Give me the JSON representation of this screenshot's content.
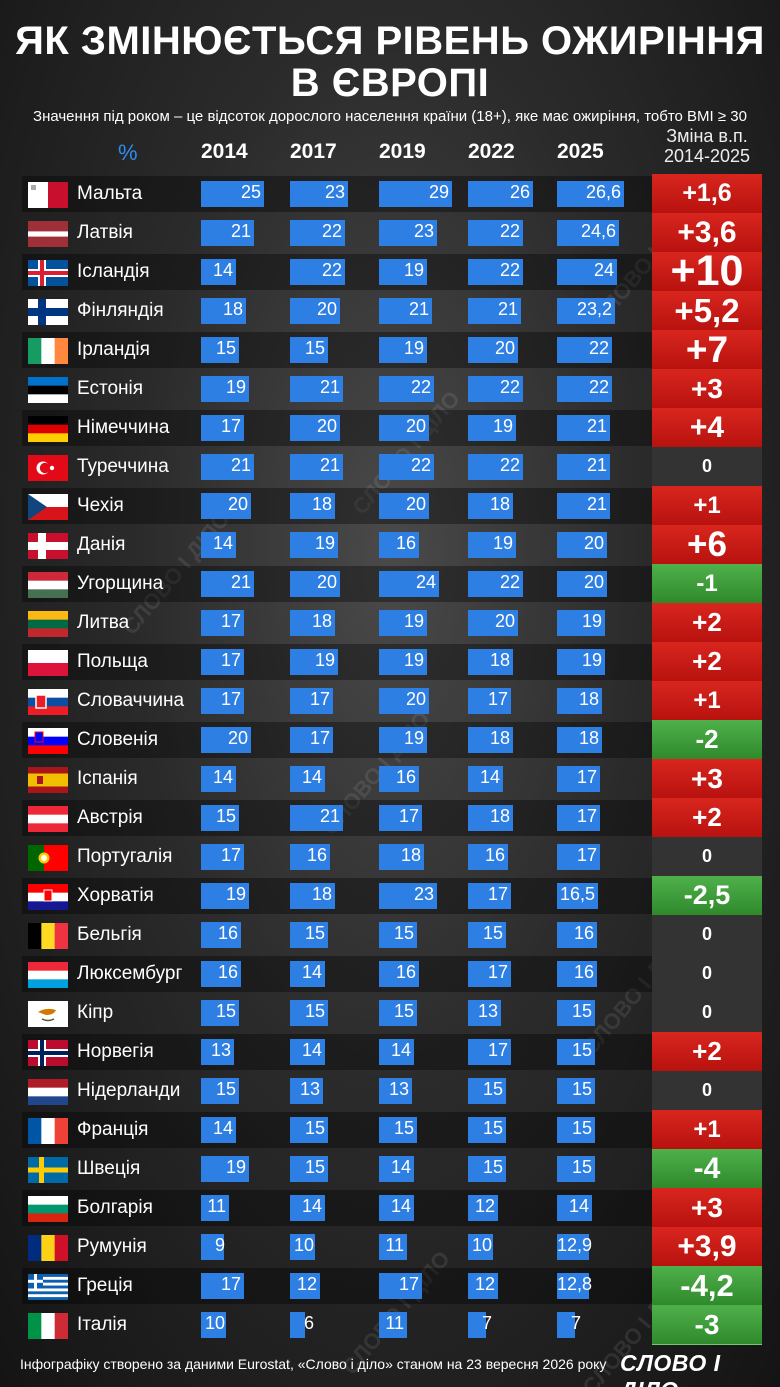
{
  "title_line1": "ЯК ЗМІНЮЄТЬСЯ РІВЕНЬ ОЖИРІННЯ",
  "title_line2": "В ЄВРОПІ",
  "subtitle": "Значення під роком – це відсоток дорослого населення країни (18+), яке має ожиріння, тобто BMI ≥ 30",
  "header": {
    "pct": "%",
    "years": [
      "2014",
      "2017",
      "2019",
      "2022",
      "2025"
    ],
    "change_line1": "Зміна в.п.",
    "change_line2": "2014-2025"
  },
  "colors": {
    "bar": "#2e7fe3",
    "increase": "#c8171a",
    "decrease": "#3d9d3a",
    "no_change": "#333333"
  },
  "chart_data": {
    "type": "table",
    "columns": [
      "2014",
      "2017",
      "2019",
      "2022",
      "2025"
    ],
    "rows": [
      {
        "country": "Мальта",
        "flag": "mt",
        "values": [
          25,
          23,
          29,
          26,
          26.6
        ],
        "labels": [
          "25",
          "23",
          "29",
          "26",
          "26,6"
        ],
        "change": "+1,6",
        "change_value": 1.6
      },
      {
        "country": "Латвія",
        "flag": "lv",
        "values": [
          21,
          22,
          23,
          22,
          24.6
        ],
        "labels": [
          "21",
          "22",
          "23",
          "22",
          "24,6"
        ],
        "change": "+3,6",
        "change_value": 3.6
      },
      {
        "country": "Ісландія",
        "flag": "is",
        "values": [
          14,
          22,
          19,
          22,
          24
        ],
        "labels": [
          "14",
          "22",
          "19",
          "22",
          "24"
        ],
        "change": "+10",
        "change_value": 10
      },
      {
        "country": "Фінляндія",
        "flag": "fi",
        "values": [
          18,
          20,
          21,
          21,
          23.2
        ],
        "labels": [
          "18",
          "20",
          "21",
          "21",
          "23,2"
        ],
        "change": "+5,2",
        "change_value": 5.2
      },
      {
        "country": "Ірландія",
        "flag": "ie",
        "values": [
          15,
          15,
          19,
          20,
          22
        ],
        "labels": [
          "15",
          "15",
          "19",
          "20",
          "22"
        ],
        "change": "+7",
        "change_value": 7
      },
      {
        "country": "Естонія",
        "flag": "ee",
        "values": [
          19,
          21,
          22,
          22,
          22
        ],
        "labels": [
          "19",
          "21",
          "22",
          "22",
          "22"
        ],
        "change": "+3",
        "change_value": 3
      },
      {
        "country": "Німеччина",
        "flag": "de",
        "values": [
          17,
          20,
          20,
          19,
          21
        ],
        "labels": [
          "17",
          "20",
          "20",
          "19",
          "21"
        ],
        "change": "+4",
        "change_value": 4
      },
      {
        "country": "Туреччина",
        "flag": "tr",
        "values": [
          21,
          21,
          22,
          22,
          21
        ],
        "labels": [
          "21",
          "21",
          "22",
          "22",
          "21"
        ],
        "change": "0",
        "change_value": 0
      },
      {
        "country": "Чехія",
        "flag": "cz",
        "values": [
          20,
          18,
          20,
          18,
          21
        ],
        "labels": [
          "20",
          "18",
          "20",
          "18",
          "21"
        ],
        "change": "+1",
        "change_value": 1
      },
      {
        "country": "Данія",
        "flag": "dk",
        "values": [
          14,
          19,
          16,
          19,
          20
        ],
        "labels": [
          "14",
          "19",
          "16",
          "19",
          "20"
        ],
        "change": "+6",
        "change_value": 6
      },
      {
        "country": "Угорщина",
        "flag": "hu",
        "values": [
          21,
          20,
          24,
          22,
          20
        ],
        "labels": [
          "21",
          "20",
          "24",
          "22",
          "20"
        ],
        "change": "-1",
        "change_value": -1
      },
      {
        "country": "Литва",
        "flag": "lt",
        "values": [
          17,
          18,
          19,
          20,
          19
        ],
        "labels": [
          "17",
          "18",
          "19",
          "20",
          "19"
        ],
        "change": "+2",
        "change_value": 2
      },
      {
        "country": "Польща",
        "flag": "pl",
        "values": [
          17,
          19,
          19,
          18,
          19
        ],
        "labels": [
          "17",
          "19",
          "19",
          "18",
          "19"
        ],
        "change": "+2",
        "change_value": 2
      },
      {
        "country": "Словаччина",
        "flag": "sk",
        "values": [
          17,
          17,
          20,
          17,
          18
        ],
        "labels": [
          "17",
          "17",
          "20",
          "17",
          "18"
        ],
        "change": "+1",
        "change_value": 1
      },
      {
        "country": "Словенія",
        "flag": "si",
        "values": [
          20,
          17,
          19,
          18,
          18
        ],
        "labels": [
          "20",
          "17",
          "19",
          "18",
          "18"
        ],
        "change": "-2",
        "change_value": -2
      },
      {
        "country": "Іспанія",
        "flag": "es",
        "values": [
          14,
          14,
          16,
          14,
          17
        ],
        "labels": [
          "14",
          "14",
          "16",
          "14",
          "17"
        ],
        "change": "+3",
        "change_value": 3
      },
      {
        "country": "Австрія",
        "flag": "at",
        "values": [
          15,
          21,
          17,
          18,
          17
        ],
        "labels": [
          "15",
          "21",
          "17",
          "18",
          "17"
        ],
        "change": "+2",
        "change_value": 2
      },
      {
        "country": "Португалія",
        "flag": "pt",
        "values": [
          17,
          16,
          18,
          16,
          17
        ],
        "labels": [
          "17",
          "16",
          "18",
          "16",
          "17"
        ],
        "change": "0",
        "change_value": 0
      },
      {
        "country": "Хорватія",
        "flag": "hr",
        "values": [
          19,
          18,
          23,
          17,
          16.5
        ],
        "labels": [
          "19",
          "18",
          "23",
          "17",
          "16,5"
        ],
        "change": "-2,5",
        "change_value": -2.5
      },
      {
        "country": "Бельгія",
        "flag": "be",
        "values": [
          16,
          15,
          15,
          15,
          16
        ],
        "labels": [
          "16",
          "15",
          "15",
          "15",
          "16"
        ],
        "change": "0",
        "change_value": 0
      },
      {
        "country": "Люксембург",
        "flag": "lu",
        "values": [
          16,
          14,
          16,
          17,
          16
        ],
        "labels": [
          "16",
          "14",
          "16",
          "17",
          "16"
        ],
        "change": "0",
        "change_value": 0
      },
      {
        "country": "Кіпр",
        "flag": "cy",
        "values": [
          15,
          15,
          15,
          13,
          15
        ],
        "labels": [
          "15",
          "15",
          "15",
          "13",
          "15"
        ],
        "change": "0",
        "change_value": 0
      },
      {
        "country": "Норвегія",
        "flag": "no",
        "values": [
          13,
          14,
          14,
          17,
          15
        ],
        "labels": [
          "13",
          "14",
          "14",
          "17",
          "15"
        ],
        "change": "+2",
        "change_value": 2
      },
      {
        "country": "Нідерланди",
        "flag": "nl",
        "values": [
          15,
          13,
          13,
          15,
          15
        ],
        "labels": [
          "15",
          "13",
          "13",
          "15",
          "15"
        ],
        "change": "0",
        "change_value": 0
      },
      {
        "country": "Франція",
        "flag": "fr",
        "values": [
          14,
          15,
          15,
          15,
          15
        ],
        "labels": [
          "14",
          "15",
          "15",
          "15",
          "15"
        ],
        "change": "+1",
        "change_value": 1
      },
      {
        "country": "Швеція",
        "flag": "se",
        "values": [
          19,
          15,
          14,
          15,
          15
        ],
        "labels": [
          "19",
          "15",
          "14",
          "15",
          "15"
        ],
        "change": "-4",
        "change_value": -4
      },
      {
        "country": "Болгарія",
        "flag": "bg",
        "values": [
          11,
          14,
          14,
          12,
          14
        ],
        "labels": [
          "11",
          "14",
          "14",
          "12",
          "14"
        ],
        "change": "+3",
        "change_value": 3
      },
      {
        "country": "Румунія",
        "flag": "ro",
        "values": [
          9,
          10,
          11,
          10,
          12.9
        ],
        "labels": [
          "9",
          "10",
          "11",
          "10",
          "12,9"
        ],
        "change": "+3,9",
        "change_value": 3.9
      },
      {
        "country": "Греція",
        "flag": "gr",
        "values": [
          17,
          12,
          17,
          12,
          12.8
        ],
        "labels": [
          "17",
          "12",
          "17",
          "12",
          "12,8"
        ],
        "change": "-4,2",
        "change_value": -4.2
      },
      {
        "country": "Італія",
        "flag": "it",
        "values": [
          10,
          6,
          11,
          7,
          7
        ],
        "labels": [
          "10",
          "6",
          "11",
          "7",
          "7"
        ],
        "change": "-3",
        "change_value": -3
      }
    ]
  },
  "footer": "Інфографіку створено за даними Eurostat, «Слово і діло» станом на 23 вересня 2026 року",
  "logo": "СЛОВО І ДІЛО",
  "watermark": "СЛОВО І ДІЛО"
}
